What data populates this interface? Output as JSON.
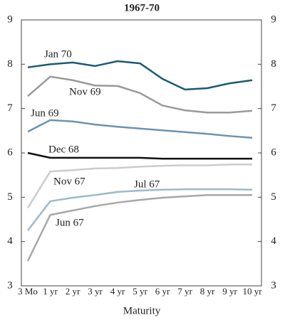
{
  "chart_data": {
    "type": "line",
    "title": "1967-70",
    "x_label": "Maturity",
    "categories": [
      "3 Mo",
      "1 yr",
      "2 yr",
      "3 yr",
      "4 yr",
      "5 yr",
      "6 yr",
      "7 yr",
      "8 yr",
      "9 yr",
      "10 yr"
    ],
    "series": [
      {
        "name": "Jan 70",
        "color": "#1b5a73",
        "values": [
          7.93,
          8.0,
          8.04,
          7.96,
          8.07,
          8.02,
          7.67,
          7.43,
          7.46,
          7.57,
          7.64
        ]
      },
      {
        "name": "Nov 69",
        "color": "#9a9a9a",
        "values": [
          7.28,
          7.72,
          7.64,
          7.52,
          7.51,
          7.35,
          7.07,
          6.96,
          6.91,
          6.91,
          6.95
        ]
      },
      {
        "name": "Jun 69",
        "color": "#6c93ad",
        "values": [
          6.48,
          6.74,
          6.71,
          6.64,
          6.59,
          6.55,
          6.51,
          6.47,
          6.43,
          6.38,
          6.34
        ]
      },
      {
        "name": "Dec 68",
        "color": "#111111",
        "values": [
          6.0,
          5.89,
          5.89,
          5.89,
          5.89,
          5.89,
          5.87,
          5.87,
          5.87,
          5.87,
          5.87
        ]
      },
      {
        "name": "Nov 67",
        "color": "#cccccc",
        "values": [
          4.76,
          5.58,
          5.61,
          5.65,
          5.66,
          5.69,
          5.71,
          5.72,
          5.72,
          5.74,
          5.74
        ]
      },
      {
        "name": "Jul 67",
        "color": "#9cbacd",
        "values": [
          4.25,
          4.91,
          4.99,
          5.05,
          5.12,
          5.15,
          5.17,
          5.18,
          5.18,
          5.18,
          5.17
        ]
      },
      {
        "name": "Jun 67",
        "color": "#a8a8a8",
        "values": [
          3.56,
          4.6,
          4.7,
          4.8,
          4.88,
          4.94,
          4.99,
          5.02,
          5.05,
          5.05,
          5.05
        ]
      }
    ],
    "ylim": [
      3,
      9
    ],
    "yticks": [
      3,
      4,
      5,
      6,
      7,
      8,
      9
    ]
  }
}
